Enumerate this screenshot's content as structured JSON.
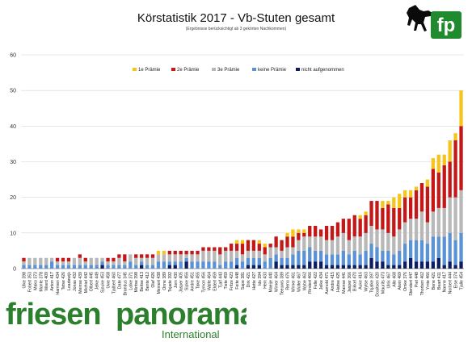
{
  "title": "Körstatistik 2017 - Vb-Stuten gesamt",
  "subtitle": "(Ergebnisse berücksichtigt ab 3 gekörten Nachkommen)",
  "logo": {
    "text": "fp",
    "color": "#1f8a2e"
  },
  "watermark": {
    "word1": "friesen",
    "word2": "panorama",
    "sub": "International",
    "color": "#2c7f2c"
  },
  "chart_data": {
    "type": "bar",
    "stacked": true,
    "ylim": [
      0,
      60
    ],
    "yticks": [
      0,
      10,
      20,
      30,
      40,
      50,
      60
    ],
    "grid": true,
    "legend_position": "top-center",
    "categories": [
      "Ulke 398",
      "Fobert 353",
      "Mako 373",
      "Monte 378",
      "Wierd 409",
      "Anton 417",
      "Harmen 434",
      "Tetse 426",
      "Loadewijk",
      "Jonas 432",
      "Meinse 439",
      "Michiel 442",
      "Olbert 445",
      "Jelke 449",
      "Sjouke 453",
      "Uwe 458",
      "Tjalbert 460",
      "Date 477",
      "Brandus 345",
      "Lolke 371",
      "Mintse 398",
      "Beitse 413",
      "Bente 412",
      "Olaf 426",
      "Meinert 438",
      "Onne 389",
      "Tsjade 392",
      "Jorn 430",
      "Jasper 405",
      "Sipke 456",
      "Andre 451",
      "Take 455",
      "Tymon 456",
      "Walte 464",
      "Eldert 459",
      "Tjalf 443",
      "Tiete 459",
      "Fritze 423",
      "Feite 448",
      "Sape 381",
      "Dirk 421",
      "Hette 427",
      "Ids 394",
      "Hein 433",
      "Maeije 440",
      "Wimer 464",
      "Teeuwis 389",
      "Reno 476",
      "Wimer 461",
      "Wolter 467",
      "Wybe 462",
      "Rindert 466",
      "Felle 422",
      "Jelke 434",
      "Aamold 471",
      "Andre 415",
      "Haitse 425",
      "Mainse 441",
      "Jasper 366",
      "Bikkel 470",
      "Auke 416",
      "Wytse 463",
      "Tsjalke 397",
      "Doaitsen 420",
      "Maurits 473",
      "Ulrik 467",
      "Alle 468",
      "Alwin 469",
      "Omke 376",
      "Stendert 447",
      "Piet 448",
      "Thorben 462",
      "Ymte 466",
      "Bene 421",
      "Beart 411",
      "Nanne 417",
      "Norbert 444",
      "Eise 374",
      "Tjalle 454"
    ],
    "series": [
      {
        "name": "1e Prämie",
        "color": "#f6c51b",
        "values": [
          0,
          0,
          0,
          0,
          0,
          0,
          0,
          0,
          0,
          0,
          0,
          0,
          0,
          0,
          0,
          0,
          0,
          0,
          0,
          0,
          0,
          0,
          0,
          0,
          1,
          1,
          0,
          0,
          0,
          0,
          0,
          0,
          0,
          0,
          0,
          0,
          0,
          0,
          1,
          1,
          0,
          0,
          1,
          1,
          0,
          0,
          0,
          1,
          2,
          1,
          1,
          0,
          0,
          0,
          0,
          0,
          0,
          0,
          0,
          0,
          1,
          1,
          0,
          0,
          2,
          1,
          3,
          4,
          2,
          2,
          1,
          0,
          2,
          3,
          5,
          3,
          6,
          2,
          10
        ]
      },
      {
        "name": "2e Prämie",
        "color": "#c41717",
        "values": [
          1,
          0,
          0,
          0,
          0,
          0,
          1,
          1,
          1,
          0,
          1,
          1,
          0,
          0,
          0,
          1,
          1,
          1,
          2,
          0,
          1,
          1,
          1,
          1,
          0,
          0,
          1,
          1,
          1,
          1,
          1,
          1,
          1,
          1,
          1,
          2,
          1,
          2,
          2,
          3,
          3,
          3,
          2,
          2,
          1,
          3,
          3,
          3,
          3,
          2,
          1,
          3,
          3,
          2,
          4,
          4,
          4,
          4,
          6,
          6,
          5,
          5,
          7,
          8,
          6,
          8,
          8,
          6,
          7,
          6,
          8,
          8,
          10,
          12,
          10,
          12,
          10,
          16,
          18
        ]
      },
      {
        "name": "3e Prämie",
        "color": "#b8b8b8",
        "values": [
          1,
          2,
          2,
          2,
          2,
          1,
          1,
          1,
          1,
          2,
          2,
          1,
          2,
          2,
          1,
          1,
          1,
          2,
          1,
          2,
          2,
          1,
          2,
          2,
          2,
          2,
          2,
          2,
          2,
          1,
          2,
          2,
          3,
          3,
          3,
          3,
          3,
          3,
          2,
          2,
          2,
          2,
          2,
          2,
          3,
          2,
          2,
          3,
          2,
          3,
          4,
          3,
          4,
          4,
          4,
          4,
          5,
          5,
          4,
          4,
          5,
          5,
          5,
          5,
          6,
          5,
          5,
          6,
          6,
          6,
          6,
          8,
          6,
          7,
          8,
          8,
          10,
          12,
          12
        ]
      },
      {
        "name": "keine Prämie",
        "color": "#5b92d6",
        "values": [
          1,
          1,
          1,
          1,
          1,
          2,
          1,
          1,
          1,
          1,
          1,
          1,
          1,
          1,
          1,
          1,
          1,
          1,
          1,
          2,
          1,
          1,
          1,
          1,
          2,
          2,
          1,
          1,
          2,
          1,
          2,
          2,
          2,
          2,
          2,
          1,
          2,
          2,
          2,
          2,
          2,
          2,
          2,
          2,
          3,
          2,
          2,
          2,
          3,
          4,
          4,
          4,
          3,
          3,
          3,
          3,
          3,
          4,
          3,
          4,
          3,
          4,
          4,
          4,
          3,
          4,
          3,
          4,
          5,
          5,
          6,
          6,
          5,
          7,
          6,
          8,
          8,
          7,
          8
        ]
      },
      {
        "name": "nicht aufgenommen",
        "color": "#0c1e62",
        "values": [
          0,
          0,
          0,
          0,
          0,
          0,
          0,
          0,
          0,
          0,
          0,
          0,
          0,
          0,
          1,
          0,
          0,
          0,
          0,
          0,
          0,
          1,
          0,
          0,
          0,
          0,
          1,
          1,
          0,
          2,
          0,
          0,
          0,
          0,
          0,
          0,
          0,
          0,
          1,
          0,
          1,
          1,
          1,
          0,
          0,
          2,
          1,
          1,
          1,
          1,
          1,
          2,
          2,
          2,
          1,
          1,
          1,
          1,
          1,
          1,
          1,
          1,
          3,
          2,
          2,
          1,
          1,
          1,
          2,
          3,
          2,
          2,
          2,
          2,
          3,
          1,
          2,
          1,
          2
        ]
      }
    ]
  }
}
